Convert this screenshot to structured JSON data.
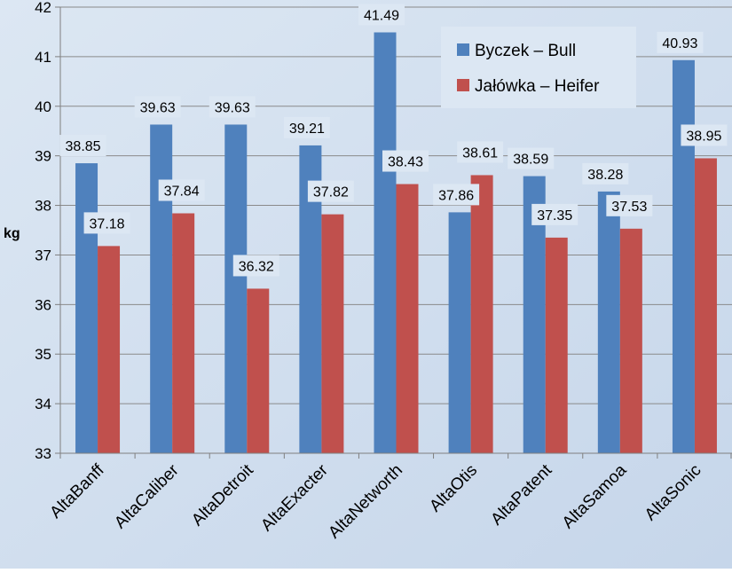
{
  "chart_data": {
    "type": "bar",
    "title": "",
    "xlabel": "",
    "ylabel": "kg",
    "ylim": [
      33,
      42
    ],
    "yticks": [
      33,
      34,
      35,
      36,
      37,
      38,
      39,
      40,
      41,
      42
    ],
    "ytick_labels": [
      "33",
      "34",
      "35",
      "36",
      "37",
      "38",
      "39",
      "40",
      "41",
      "42"
    ],
    "grid": true,
    "legend_position": "top-right",
    "categories": [
      "AltaBanff",
      "AltaCaliber",
      "AltaDetroit",
      "AltaExacter",
      "AltaNetworth",
      "AltaOtis",
      "AltaPatent",
      "AltaSamoa",
      "AltaSonic"
    ],
    "series": [
      {
        "name": "Byczek – Bull",
        "color": "#4f81bd",
        "values": [
          38.85,
          39.63,
          39.63,
          39.21,
          41.49,
          37.86,
          38.59,
          38.28,
          40.93
        ],
        "labels": [
          "38.85",
          "39.63",
          "39.63",
          "39.21",
          "41.49",
          "37.86",
          "38.59",
          "38.28",
          "40.93"
        ]
      },
      {
        "name": "Jałówka – Heifer",
        "color": "#c0504d",
        "values": [
          37.18,
          37.84,
          36.32,
          37.82,
          38.43,
          38.61,
          37.35,
          37.53,
          38.95
        ],
        "labels": [
          "37.18",
          "37.84",
          "36.32",
          "37.82",
          "38.43",
          "38.61",
          "37.35",
          "37.53",
          "38.95"
        ]
      }
    ]
  }
}
